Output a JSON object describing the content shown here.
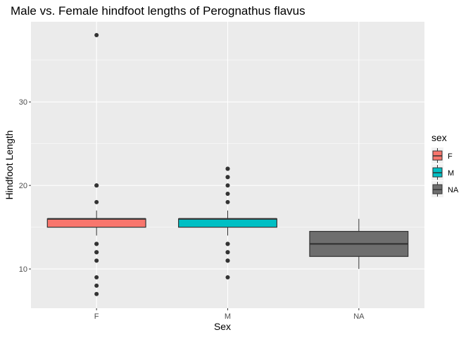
{
  "chart_data": {
    "type": "boxplot",
    "title": "Male vs. Female hindfoot lengths of Perognathus flavus",
    "xlabel": "Sex",
    "ylabel": "Hindfoot Length",
    "categories": [
      "F",
      "M",
      "NA"
    ],
    "ylim": [
      5.3,
      39.6
    ],
    "yticks": [
      10,
      20,
      30
    ],
    "grid": true,
    "legend": {
      "title": "sex",
      "placement": "right",
      "entries": [
        "F",
        "M",
        "NA"
      ]
    },
    "colors": {
      "F": "#F8766D",
      "M": "#00BFC4",
      "NA": "#6e6e6e",
      "panel_background": "#EBEBEB",
      "grid": "#FFFFFF",
      "outline": "#333333",
      "outlier": "#333333"
    },
    "boxes": [
      {
        "category": "F",
        "fill_key": "F",
        "q1": 15,
        "median": 16,
        "q3": 16,
        "whisker_low": 14,
        "whisker_high": 17,
        "outliers": [
          38,
          20,
          20,
          18,
          13,
          13,
          12,
          12,
          11,
          9,
          8,
          7
        ]
      },
      {
        "category": "M",
        "fill_key": "M",
        "q1": 15,
        "median": 16,
        "q3": 16,
        "whisker_low": 14,
        "whisker_high": 17,
        "outliers": [
          22,
          22,
          21,
          21,
          20,
          19,
          18,
          13,
          13,
          12,
          12,
          11,
          11,
          9
        ]
      },
      {
        "category": "NA",
        "fill_key": "NA",
        "q1": 11.5,
        "median": 13,
        "q3": 14.5,
        "whisker_low": 10,
        "whisker_high": 16,
        "outliers": []
      }
    ]
  }
}
